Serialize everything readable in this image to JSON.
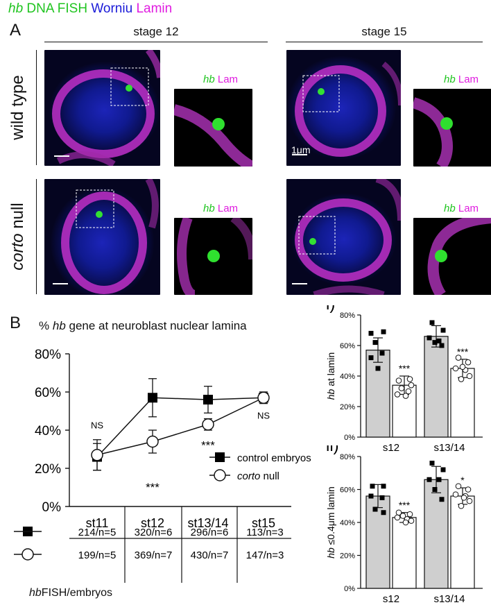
{
  "header": {
    "letter_a": "A",
    "hb": "hb",
    "dna_fish": "DNA FISH",
    "worniu": "Worniu",
    "lamin": "Lamin"
  },
  "columns": {
    "left": "stage 12",
    "right": "stage 15"
  },
  "rows": {
    "top": "wild type",
    "bottom_italic": "corto",
    "bottom_rest": "null"
  },
  "inset": {
    "gene": "hb",
    "lam": "Lam"
  },
  "scalebar": "1μm",
  "panel_b": {
    "letter": "B",
    "title_pre": "%",
    "title_gene": "hb",
    "title_rest": "gene at neuroblast nuclear lamina",
    "legend_control": "control embryos",
    "legend_corto_italic": "corto",
    "legend_corto_rest": "null",
    "table": {
      "control": [
        "214/n=5",
        "320/n=6",
        "296/n=6",
        "113/n=3"
      ],
      "corto": [
        "199/n=5",
        "369/n=7",
        "430/n=7",
        "147/n=3"
      ]
    },
    "footer_italic": "hb",
    "footer_rest": "FISH/embryos"
  },
  "chart_data": [
    {
      "type": "line",
      "categories": [
        "st11",
        "st12",
        "st13/14",
        "st15"
      ],
      "yticks": [
        "0%",
        "20%",
        "40%",
        "60%",
        "80%"
      ],
      "ylim": [
        0,
        80
      ],
      "series": [
        {
          "name": "control embryos",
          "values": [
            26,
            57,
            56,
            57
          ],
          "err": [
            7,
            10,
            7,
            3
          ]
        },
        {
          "name": "corto null",
          "values": [
            27,
            34,
            43,
            57
          ],
          "err": [
            8,
            6,
            3,
            3
          ]
        }
      ],
      "annotations": [
        "NS",
        "***",
        "***",
        "NS"
      ]
    },
    {
      "type": "bar",
      "label": "i)",
      "ylabel_italic": "hb",
      "ylabel_rest": "at lamin",
      "categories": [
        "s12",
        "s13/14"
      ],
      "yticks": [
        "0%",
        "20%",
        "40%",
        "60%",
        "80%"
      ],
      "ylim": [
        0,
        80
      ],
      "series": [
        {
          "name": "control",
          "values": [
            57,
            66
          ],
          "err": [
            8,
            7
          ]
        },
        {
          "name": "corto null",
          "values": [
            34,
            45
          ],
          "err": [
            6,
            6
          ]
        }
      ],
      "annotations": [
        "***",
        "***"
      ]
    },
    {
      "type": "bar",
      "label": "ii)",
      "ylabel_italic": "hb",
      "ylabel_rest": "≤0.4μm lamin",
      "categories": [
        "s12",
        "s13/14"
      ],
      "yticks": [
        "0%",
        "20%",
        "40%",
        "60%",
        "80%"
      ],
      "ylim": [
        0,
        80
      ],
      "series": [
        {
          "name": "control",
          "values": [
            56,
            66
          ],
          "err": [
            7,
            8
          ]
        },
        {
          "name": "corto null",
          "values": [
            43,
            56
          ],
          "err": [
            3,
            5
          ]
        }
      ],
      "annotations": [
        "***",
        "*"
      ]
    }
  ]
}
